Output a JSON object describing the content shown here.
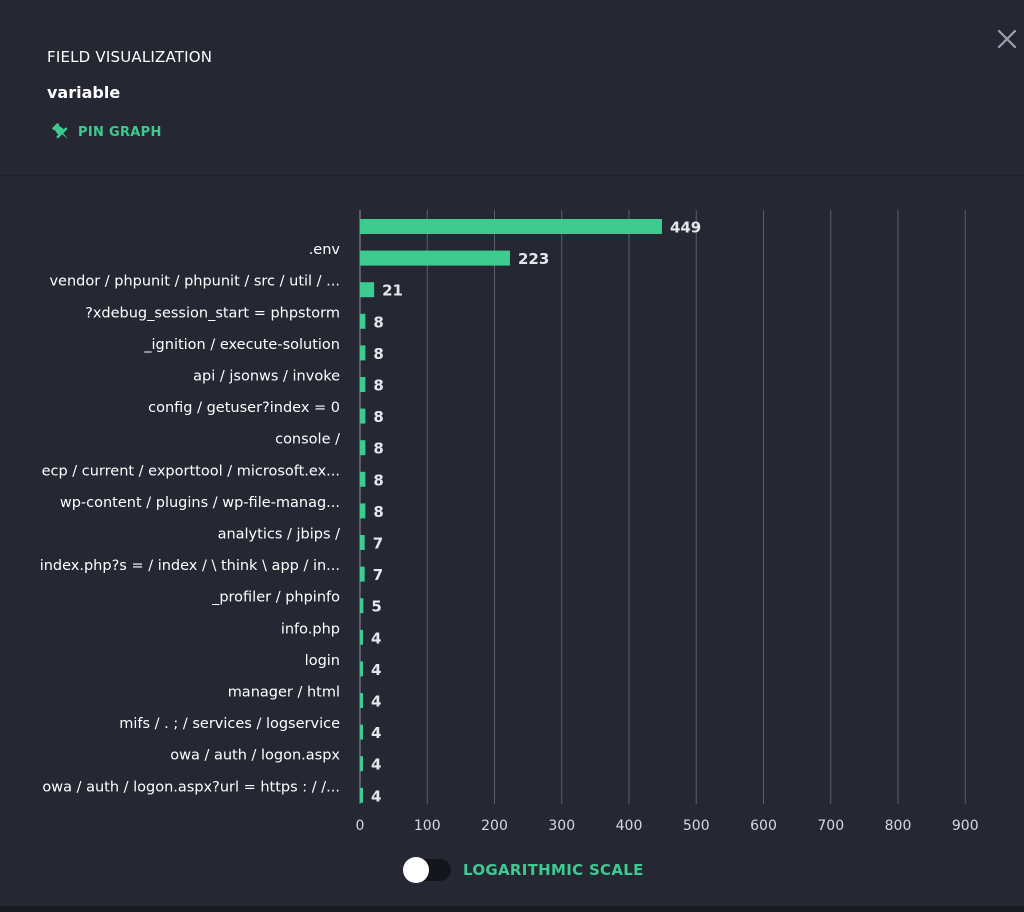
{
  "header": {
    "title": "FIELD VISUALIZATION",
    "subtitle": "variable",
    "pin_label": "PIN GRAPH",
    "pin_icon": "pin-icon",
    "close_icon": "close-icon"
  },
  "footer": {
    "toggle_label": "LOGARITHMIC SCALE",
    "toggle_on": false
  },
  "colors": {
    "accent": "#3ecb8f",
    "background": "#252733",
    "grid": "#5a5e6e",
    "text": "#ffffff"
  },
  "chart_data": {
    "type": "bar",
    "orientation": "horizontal",
    "categories": [
      "",
      ".env",
      "vendor / phpunit / phpunit / src / util / ...",
      "?xdebug_session_start = phpstorm",
      "_ignition / execute-solution",
      "api / jsonws / invoke",
      "config / getuser?index = 0",
      "console /",
      "ecp / current / exporttool / microsoft.ex...",
      "wp-content / plugins / wp-file-manag...",
      "analytics / jbips /",
      "index.php?s = / index / \\ think \\ app / in...",
      "_profiler / phpinfo",
      "info.php",
      "login",
      "manager / html",
      "mifs / . ; / services / logservice",
      "owa / auth / logon.aspx",
      "owa / auth / logon.aspx?url = https : / /..."
    ],
    "values": [
      449,
      223,
      21,
      8,
      8,
      8,
      8,
      8,
      8,
      8,
      7,
      7,
      5,
      4,
      4,
      4,
      4,
      4,
      4
    ],
    "xticks": [
      0,
      100,
      200,
      300,
      400,
      500,
      600,
      700,
      800,
      900
    ],
    "xlim": [
      0,
      920
    ],
    "grid": true,
    "title": "",
    "xlabel": "",
    "ylabel": ""
  }
}
